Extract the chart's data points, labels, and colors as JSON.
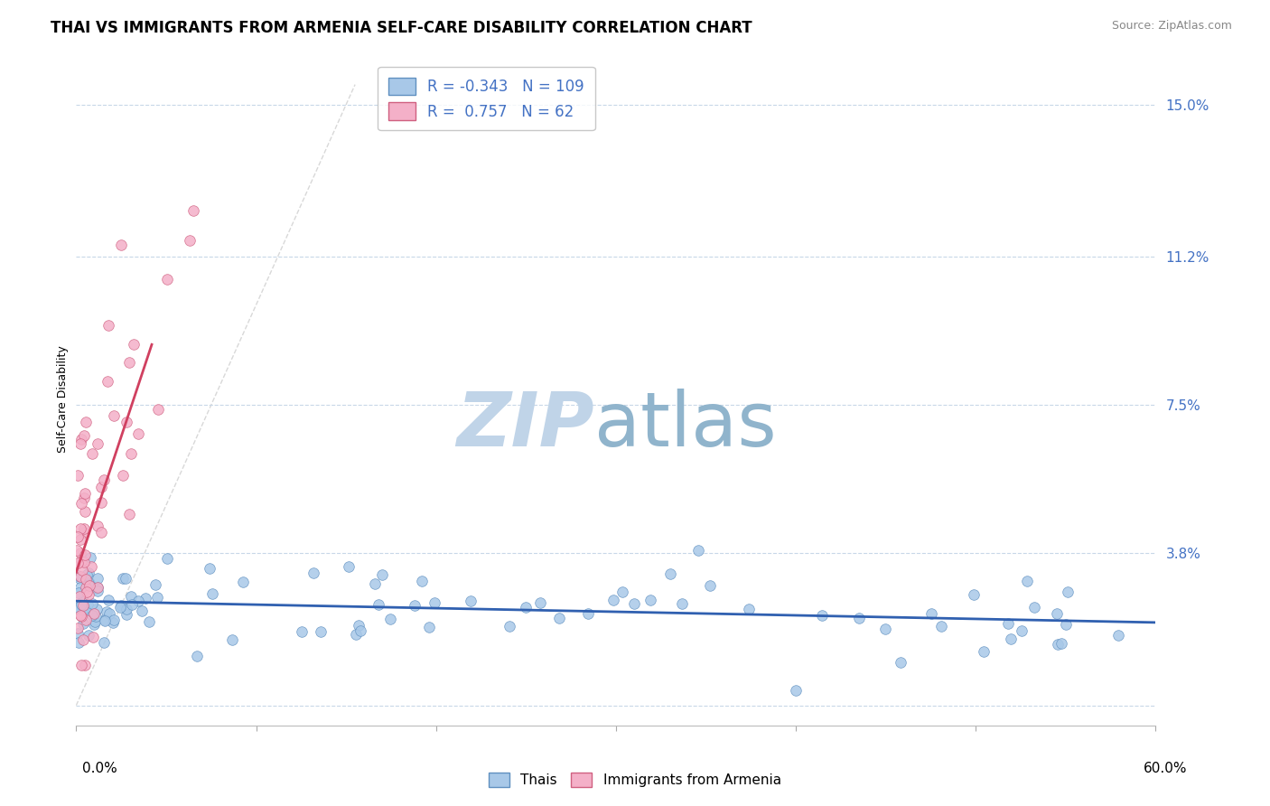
{
  "title": "THAI VS IMMIGRANTS FROM ARMENIA SELF-CARE DISABILITY CORRELATION CHART",
  "source": "Source: ZipAtlas.com",
  "ylabel": "Self-Care Disability",
  "y_ticks_vals": [
    0.0,
    0.038,
    0.075,
    0.112,
    0.15
  ],
  "y_tick_labels": [
    "",
    "3.8%",
    "7.5%",
    "11.2%",
    "15.0%"
  ],
  "x_min": 0.0,
  "x_max": 0.6,
  "y_min": -0.005,
  "y_max": 0.158,
  "thai_R": -0.343,
  "thai_N": 109,
  "armenia_R": 0.757,
  "armenia_N": 62,
  "thai_face_color": "#a8c8e8",
  "armenia_face_color": "#f4b0c8",
  "thai_edge_color": "#6090c0",
  "armenia_edge_color": "#d06080",
  "thai_line_color": "#3060b0",
  "armenia_line_color": "#d04060",
  "label_color": "#4472c4",
  "background_color": "#ffffff",
  "grid_color": "#c8d8e8",
  "title_fontsize": 12,
  "source_fontsize": 9,
  "watermark_zip_color": "#c0d4e8",
  "watermark_atlas_color": "#90b4cc",
  "diag_line_color": "#c8c8c8"
}
